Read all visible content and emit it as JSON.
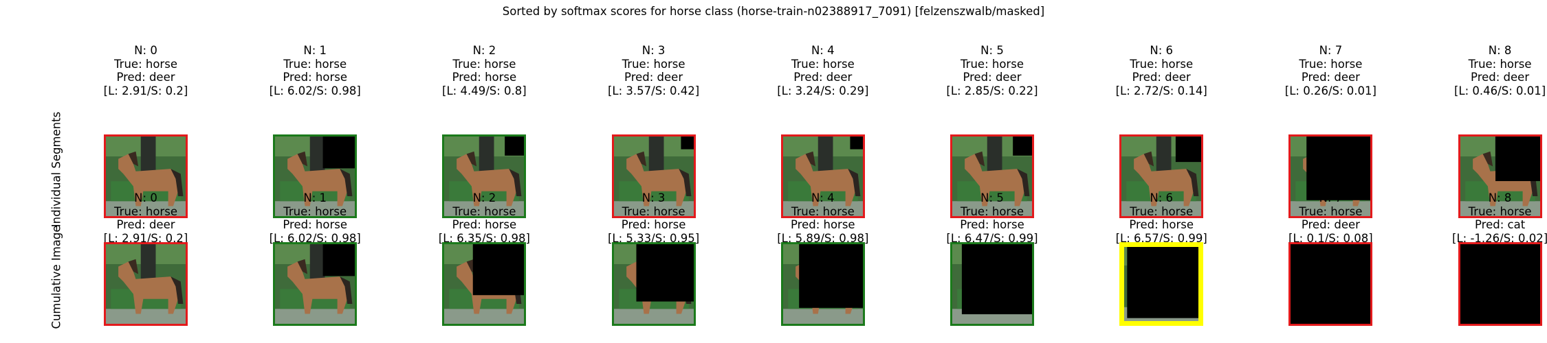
{
  "chart_data": {
    "type": "image-grid",
    "title": "Sorted by softmax scores for horse class (horse-train-n02388917_7091) [felzenszwalb/masked]",
    "rows": [
      {
        "label": "Individual Segments",
        "panels": [
          {
            "n": "N: 0",
            "true": "True: horse",
            "pred": "Pred: deer",
            "scores": "[L: 2.91/S: 0.2]",
            "border": "#e31a1c",
            "visible": 1.0
          },
          {
            "n": "N: 1",
            "true": "True: horse",
            "pred": "Pred: horse",
            "scores": "[L: 6.02/S: 0.98]",
            "border": "#1b7a1b",
            "visible": 0.75
          },
          {
            "n": "N: 2",
            "true": "True: horse",
            "pred": "Pred: horse",
            "scores": "[L: 4.49/S: 0.8]",
            "border": "#1b7a1b",
            "visible": 0.85
          },
          {
            "n": "N: 3",
            "true": "True: horse",
            "pred": "Pred: deer",
            "scores": "[L: 3.57/S: 0.42]",
            "border": "#e31a1c",
            "visible": 0.9
          },
          {
            "n": "N: 4",
            "true": "True: horse",
            "pred": "Pred: deer",
            "scores": "[L: 3.24/S: 0.29]",
            "border": "#e31a1c",
            "visible": 0.9
          },
          {
            "n": "N: 5",
            "true": "True: horse",
            "pred": "Pred: deer",
            "scores": "[L: 2.85/S: 0.22]",
            "border": "#e31a1c",
            "visible": 0.85
          },
          {
            "n": "N: 6",
            "true": "True: horse",
            "pred": "Pred: deer",
            "scores": "[L: 2.72/S: 0.14]",
            "border": "#e31a1c",
            "visible": 0.8
          },
          {
            "n": "N: 7",
            "true": "True: horse",
            "pred": "Pred: deer",
            "scores": "[L: 0.26/S: 0.01]",
            "border": "#e31a1c",
            "visible": 0.5
          },
          {
            "n": "N: 8",
            "true": "True: horse",
            "pred": "Pred: deer",
            "scores": "[L: 0.46/S: 0.01]",
            "border": "#e31a1c",
            "visible": 0.65
          }
        ]
      },
      {
        "label": "Cumulative Image",
        "panels": [
          {
            "n": "N: 0",
            "true": "True: horse",
            "pred": "Pred: deer",
            "scores": "[L: 2.91/S: 0.2]",
            "border": "#e31a1c",
            "visible": 1.0
          },
          {
            "n": "N: 1",
            "true": "True: horse",
            "pred": "Pred: horse",
            "scores": "[L: 6.02/S: 0.98]",
            "border": "#1b7a1b",
            "visible": 0.75
          },
          {
            "n": "N: 2",
            "true": "True: horse",
            "pred": "Pred: horse",
            "scores": "[L: 6.35/S: 0.98]",
            "border": "#1b7a1b",
            "visible": 0.6
          },
          {
            "n": "N: 3",
            "true": "True: horse",
            "pred": "Pred: horse",
            "scores": "[L: 5.33/S: 0.95]",
            "border": "#1b7a1b",
            "visible": 0.55
          },
          {
            "n": "N: 4",
            "true": "True: horse",
            "pred": "Pred: horse",
            "scores": "[L: 5.89/S: 0.98]",
            "border": "#1b7a1b",
            "visible": 0.5
          },
          {
            "n": "N: 5",
            "true": "True: horse",
            "pred": "Pred: horse",
            "scores": "[L: 6.47/S: 0.99]",
            "border": "#1b7a1b",
            "visible": 0.45
          },
          {
            "n": "N: 6",
            "true": "True: horse",
            "pred": "Pred: horse",
            "scores": "[L: 6.57/S: 0.99]",
            "border": "#ffff00",
            "visible": 0.4
          },
          {
            "n": "N: 7",
            "true": "True: horse",
            "pred": "Pred: deer",
            "scores": "[L: 0.1/S: 0.08]",
            "border": "#e31a1c",
            "visible": 0.1
          },
          {
            "n": "N: 8",
            "true": "True: horse",
            "pred": "Pred: cat",
            "scores": "[L: -1.26/S: 0.02]",
            "border": "#e31a1c",
            "visible": 0.0
          }
        ]
      }
    ],
    "colors": {
      "correct": "#1b7a1b",
      "incorrect": "#e31a1c",
      "best": "#ffff00",
      "mask": "#000000"
    }
  }
}
